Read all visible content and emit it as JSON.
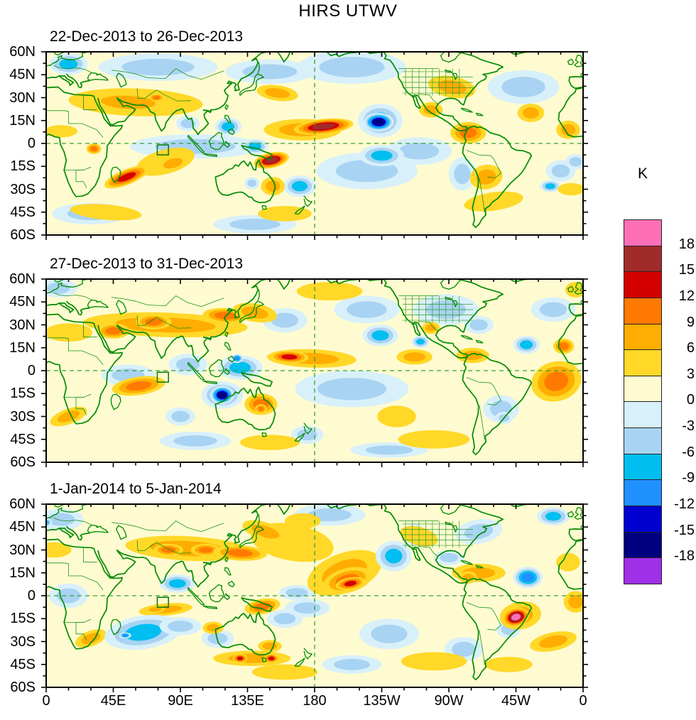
{
  "title": "HIRS UTWV",
  "colorbar": {
    "title": "K",
    "labels": [
      "18",
      "15",
      "12",
      "9",
      "6",
      "3",
      "0",
      "-3",
      "-6",
      "-9",
      "-12",
      "-15",
      "-18"
    ],
    "colors_top_to_bottom": [
      "#FF6FB8",
      "#A12B2B",
      "#D40000",
      "#FF7A00",
      "#FFAD00",
      "#FFD828",
      "#FFFBD0",
      "#D8F0FA",
      "#A9D3F2",
      "#00BFF0",
      "#2090FF",
      "#0000D0",
      "#000080",
      "#A02FE8"
    ]
  },
  "axes": {
    "lat_ticks": [
      "60N",
      "45N",
      "30N",
      "15N",
      "0",
      "15S",
      "30S",
      "45S",
      "60S"
    ],
    "lat_values": [
      60,
      45,
      30,
      15,
      0,
      -15,
      -30,
      -45,
      -60
    ],
    "lon_ticks": [
      "0",
      "45E",
      "90E",
      "135E",
      "180",
      "135W",
      "90W",
      "45W",
      "0"
    ],
    "lon_values": [
      0,
      45,
      90,
      135,
      180,
      225,
      270,
      315,
      360
    ]
  },
  "chart_data": {
    "type": "heatmap",
    "title": "HIRS UTWV",
    "units": "K",
    "levels": [
      -18,
      -15,
      -12,
      -9,
      -6,
      -3,
      0,
      3,
      6,
      9,
      12,
      15,
      18
    ],
    "lat_range": [
      -60,
      60
    ],
    "lon_range": [
      0,
      360
    ],
    "grid": "dashed reference lines at equator and 180 meridian",
    "legend_position": "right",
    "marker_box": {
      "lon_min": 74.5,
      "lon_max": 82,
      "lat_min": -7.5,
      "lat_max": -1
    },
    "panels": [
      {
        "title": "22-Dec-2013 to 26-Dec-2013",
        "features": [
          [
            75,
            50,
            40,
            9,
            -4,
            0
          ],
          [
            150,
            47,
            30,
            8,
            -4,
            0
          ],
          [
            205,
            50,
            36,
            11,
            -4,
            0
          ],
          [
            320,
            37,
            24,
            11,
            -4,
            0
          ],
          [
            100,
            -2,
            44,
            8,
            -4,
            0
          ],
          [
            215,
            -18,
            34,
            12,
            -4,
            0
          ],
          [
            279,
            -20,
            9,
            11,
            -4,
            0
          ],
          [
            250,
            -5,
            22,
            9,
            -4,
            0
          ],
          [
            30,
            -46,
            26,
            7,
            -4,
            0
          ],
          [
            140,
            -53,
            28,
            6,
            -4,
            0
          ],
          [
            345,
            -18,
            10,
            7,
            -4,
            0
          ],
          [
            15,
            52,
            13,
            7,
            -8,
            0
          ],
          [
            95,
            13,
            8,
            5,
            -6,
            0
          ],
          [
            122,
            11,
            9,
            6,
            -8,
            0
          ],
          [
            140,
            -2,
            9,
            5,
            -7,
            0
          ],
          [
            170,
            -28,
            11,
            7,
            -9,
            0
          ],
          [
            225,
            -8,
            15,
            7,
            -7,
            0
          ],
          [
            355,
            -12,
            7,
            5,
            -6,
            0
          ],
          [
            338,
            -28,
            7,
            4,
            -7,
            0
          ],
          [
            10,
            8,
            11,
            4,
            6,
            0
          ],
          [
            40,
            -45,
            24,
            5,
            6,
            5
          ],
          [
            300,
            -38,
            20,
            6,
            6,
            -8
          ],
          [
            160,
            -46,
            18,
            5,
            6,
            0
          ],
          [
            352,
            -30,
            9,
            4,
            6,
            0
          ],
          [
            60,
            27,
            45,
            9,
            6,
            2
          ],
          [
            155,
            33,
            14,
            5,
            7,
            8
          ],
          [
            55,
            27,
            30,
            7,
            9,
            3
          ],
          [
            74,
            30,
            5,
            2.5,
            12,
            0
          ],
          [
            32,
            -3.5,
            5,
            3.5,
            12,
            0
          ],
          [
            80,
            -12,
            20,
            8,
            6,
            -15
          ],
          [
            85,
            -13,
            11,
            5,
            9,
            -15
          ],
          [
            54,
            -22,
            16,
            5,
            13,
            -22
          ],
          [
            152,
            -28,
            8,
            6,
            9,
            0
          ],
          [
            138,
            -26,
            5,
            4,
            -6,
            0
          ],
          [
            151,
            -11,
            12,
            5,
            16,
            -12
          ],
          [
            272,
            37,
            16,
            7,
            9,
            10
          ],
          [
            258,
            22,
            8,
            5,
            7,
            0
          ],
          [
            283,
            7,
            12,
            7,
            11,
            0
          ],
          [
            325,
            20,
            9,
            6,
            9,
            0
          ],
          [
            350,
            9,
            8,
            6,
            9,
            0
          ],
          [
            295,
            -22,
            11,
            8,
            9,
            -10
          ],
          [
            172,
            9,
            26,
            7,
            7,
            0
          ],
          [
            186,
            11,
            20,
            5,
            16,
            -6
          ],
          [
            224,
            15,
            15,
            11,
            -7,
            0
          ],
          [
            223,
            14,
            10,
            6,
            -16,
            0
          ]
        ]
      },
      {
        "title": "27-Dec-2013 to 31-Dec-2013",
        "features": [
          [
            8,
            54,
            13,
            6,
            -4,
            0
          ],
          [
            340,
            40,
            15,
            8,
            -4,
            0
          ],
          [
            205,
            -12,
            38,
            12,
            -4,
            0
          ],
          [
            305,
            -25,
            12,
            9,
            -4,
            0
          ],
          [
            100,
            -46,
            24,
            6,
            -4,
            0
          ],
          [
            230,
            -52,
            26,
            5,
            -4,
            0
          ],
          [
            55,
            -3,
            18,
            7,
            -4,
            0
          ],
          [
            95,
            4,
            13,
            7,
            -6,
            0
          ],
          [
            130,
            2,
            15,
            8,
            -8,
            0
          ],
          [
            128,
            8,
            4,
            3,
            -10,
            0
          ],
          [
            160,
            33,
            15,
            8,
            -6,
            0
          ],
          [
            215,
            40,
            22,
            9,
            -6,
            0
          ],
          [
            224,
            23,
            12,
            7,
            -9,
            0
          ],
          [
            268,
            40,
            22,
            10,
            -6,
            0
          ],
          [
            290,
            30,
            10,
            6,
            -4,
            0
          ],
          [
            322,
            17,
            9,
            6,
            -9,
            0
          ],
          [
            251,
            19,
            6,
            4,
            -8,
            0
          ],
          [
            175,
            -42,
            11,
            6,
            -6,
            0
          ],
          [
            307,
            -31,
            6,
            4,
            -6,
            0
          ],
          [
            90,
            -30,
            10,
            6,
            -4,
            0
          ],
          [
            190,
            52,
            22,
            6,
            6,
            0
          ],
          [
            355,
            53,
            7,
            5,
            6,
            0
          ],
          [
            15,
            25,
            16,
            6,
            6,
            0
          ],
          [
            80,
            30,
            55,
            8,
            9,
            2
          ],
          [
            45,
            26,
            11,
            5,
            11,
            0
          ],
          [
            72,
            32,
            12,
            5,
            12,
            0
          ],
          [
            120,
            36,
            15,
            5,
            11,
            3
          ],
          [
            140,
            38,
            15,
            6,
            9,
            10
          ],
          [
            15,
            -30,
            13,
            5,
            9,
            -20
          ],
          [
            62,
            -10,
            18,
            6,
            12,
            -8
          ],
          [
            144,
            -22,
            11,
            7,
            10,
            0
          ],
          [
            144,
            -25,
            4,
            3,
            12,
            0
          ],
          [
            235,
            -30,
            13,
            7,
            6,
            0
          ],
          [
            260,
            -45,
            24,
            6,
            6,
            0
          ],
          [
            150,
            -47,
            20,
            5,
            6,
            0
          ],
          [
            178,
            8,
            30,
            6,
            9,
            2
          ],
          [
            163,
            9,
            13,
            4,
            15,
            2
          ],
          [
            247,
            9,
            12,
            5,
            8,
            0
          ],
          [
            258,
            28,
            6,
            4,
            8,
            0
          ],
          [
            286,
            10,
            11,
            5,
            9,
            0
          ],
          [
            347,
            16,
            7,
            5,
            12,
            0
          ],
          [
            342,
            -7,
            17,
            13,
            10,
            -15
          ],
          [
            118,
            -16,
            14,
            9,
            -7,
            0
          ],
          [
            118,
            -16,
            8,
            6,
            -16,
            0
          ]
        ]
      },
      {
        "title": "1-Jan-2014 to 5-Jan-2014",
        "features": [
          [
            10,
            50,
            15,
            7,
            -4,
            0
          ],
          [
            0,
            48,
            4,
            3,
            -8,
            0
          ],
          [
            190,
            53,
            24,
            7,
            -6,
            0
          ],
          [
            340,
            52,
            11,
            6,
            -7,
            0
          ],
          [
            15,
            0,
            13,
            8,
            -4,
            0
          ],
          [
            115,
            -28,
            11,
            6,
            -4,
            0
          ],
          [
            230,
            -25,
            20,
            10,
            -4,
            0
          ],
          [
            280,
            -35,
            13,
            8,
            -4,
            0
          ],
          [
            270,
            25,
            10,
            5,
            -4,
            0
          ],
          [
            205,
            -45,
            20,
            6,
            -4,
            0
          ],
          [
            160,
            -15,
            12,
            6,
            -4,
            0
          ],
          [
            88,
            8,
            12,
            6,
            -8,
            0
          ],
          [
            310,
            -22,
            8,
            6,
            -6,
            0
          ],
          [
            168,
            2,
            12,
            5,
            -6,
            0
          ],
          [
            175,
            -8,
            15,
            6,
            -6,
            0
          ],
          [
            290,
            42,
            16,
            8,
            -6,
            -10
          ],
          [
            247,
            40,
            8,
            7,
            -6,
            0
          ],
          [
            165,
            35,
            28,
            12,
            6,
            10
          ],
          [
            172,
            49,
            12,
            5,
            6,
            0
          ],
          [
            250,
            39,
            13,
            6,
            6,
            15
          ],
          [
            350,
            22,
            8,
            6,
            6,
            0
          ],
          [
            5,
            30,
            12,
            5,
            6,
            0
          ],
          [
            160,
            -50,
            22,
            5,
            6,
            0
          ],
          [
            260,
            -43,
            22,
            6,
            6,
            0
          ],
          [
            310,
            -45,
            16,
            5,
            6,
            0
          ],
          [
            95,
            31,
            42,
            8,
            9,
            3
          ],
          [
            82,
            30,
            10,
            4,
            12,
            0
          ],
          [
            107,
            30,
            10,
            4,
            12,
            0
          ],
          [
            130,
            28,
            18,
            5,
            10,
            3
          ],
          [
            147,
            42,
            16,
            6,
            9,
            18
          ],
          [
            80,
            -9,
            18,
            4,
            7,
            -5
          ],
          [
            73,
            -9,
            7,
            2.5,
            9,
            -5
          ],
          [
            30,
            -28,
            11,
            5,
            9,
            -20
          ],
          [
            145,
            -7,
            12,
            5,
            12,
            -10
          ],
          [
            112,
            -21,
            7,
            4,
            9,
            0
          ],
          [
            138,
            -41,
            26,
            5,
            9,
            0
          ],
          [
            130,
            -41,
            5,
            3,
            13,
            0
          ],
          [
            151,
            -41,
            5,
            3,
            13,
            0
          ],
          [
            150,
            -33,
            8,
            4,
            9,
            0
          ],
          [
            290,
            15,
            18,
            6,
            7,
            0
          ],
          [
            283,
            12,
            6,
            4,
            9,
            0
          ],
          [
            340,
            -30,
            16,
            6,
            9,
            -12
          ],
          [
            355,
            -4,
            8,
            7,
            9,
            0
          ],
          [
            200,
            15,
            26,
            13,
            9,
            -20
          ],
          [
            202,
            10,
            17,
            8,
            12,
            -15
          ],
          [
            204,
            8,
            10,
            4,
            15,
            -10
          ],
          [
            233,
            26,
            12,
            10,
            -9,
            0
          ],
          [
            323,
            12,
            10,
            7,
            -12,
            0
          ],
          [
            65,
            -24,
            26,
            11,
            -9,
            -8
          ],
          [
            53,
            -26,
            4,
            2,
            -10,
            0
          ],
          [
            90,
            -20,
            14,
            6,
            -6,
            0
          ],
          [
            318,
            -13,
            14,
            9,
            9,
            -10
          ],
          [
            315,
            -14,
            9,
            6,
            19,
            -15
          ]
        ]
      }
    ]
  }
}
